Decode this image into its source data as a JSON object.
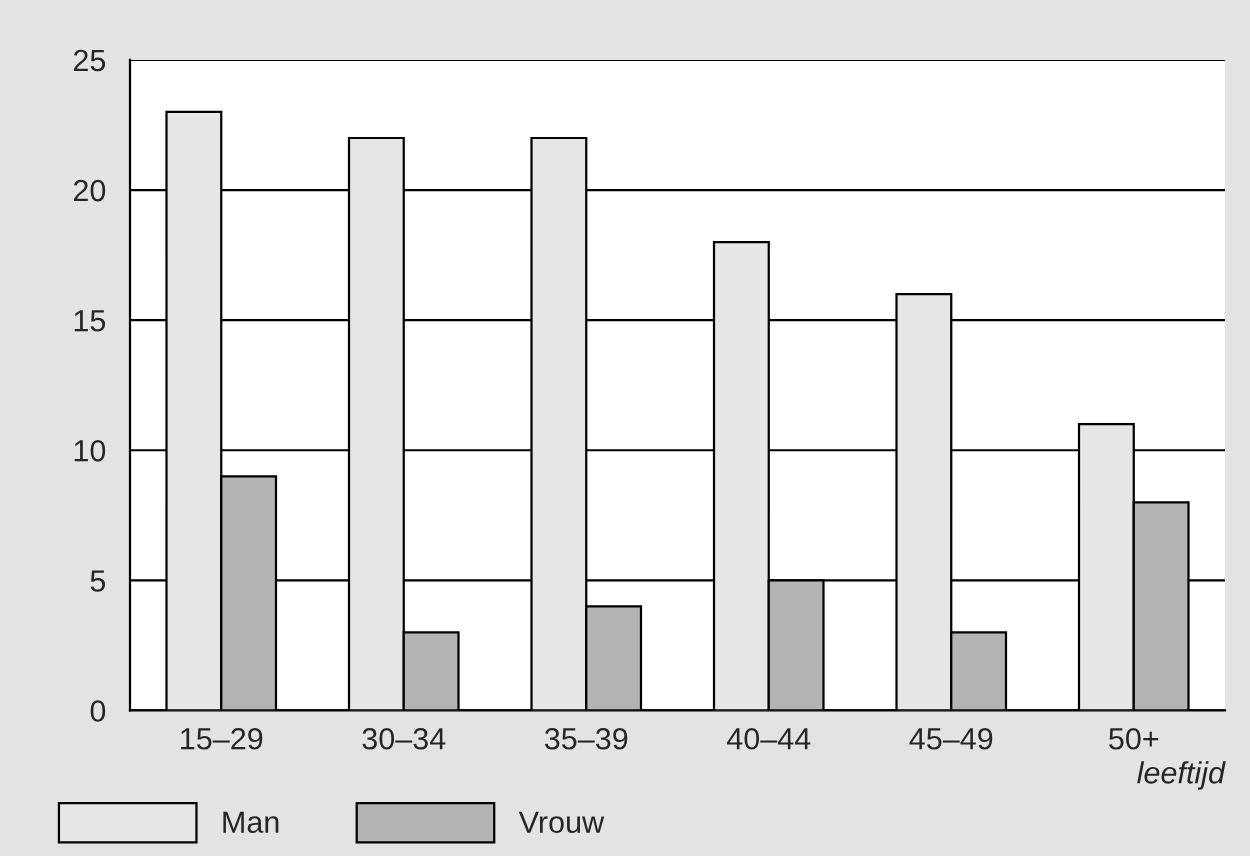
{
  "chart_data": {
    "type": "bar",
    "categories": [
      "15–29",
      "30–34",
      "35–39",
      "40–44",
      "45–49",
      "50+"
    ],
    "series": [
      {
        "name": "Man",
        "color": "#e6e6e6",
        "values": [
          23,
          22,
          22,
          18,
          16,
          11
        ]
      },
      {
        "name": "Vrouw",
        "color": "#b3b3b3",
        "values": [
          9,
          3,
          4,
          5,
          3,
          8
        ]
      }
    ],
    "xlabel": "leeftijd",
    "ylim": [
      0,
      25
    ],
    "yticks": [
      0,
      5,
      10,
      15,
      20,
      25
    ],
    "grid": "y",
    "legend": "bottom left"
  }
}
